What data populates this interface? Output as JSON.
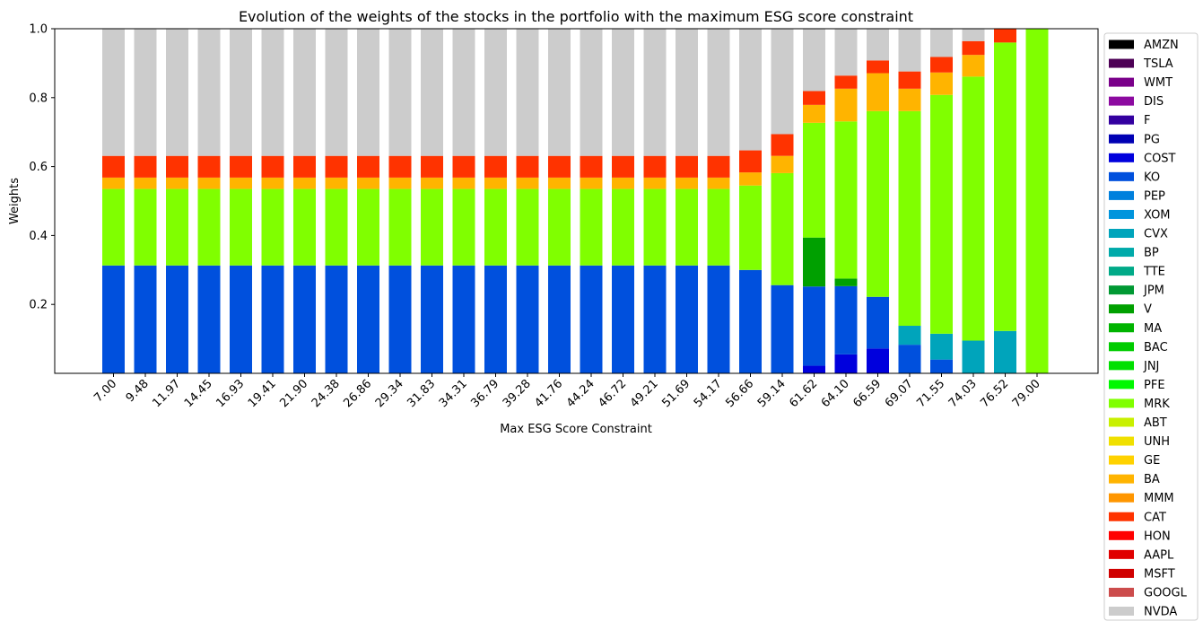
{
  "chart_data": {
    "type": "bar",
    "stacked": true,
    "title": "Evolution of the weights of the stocks in the portfolio with the maximum ESG score constraint",
    "xlabel": "Max ESG Score Constraint",
    "ylabel": "Weights",
    "ylim": [
      0,
      1.0
    ],
    "yticks": [
      0.2,
      0.4,
      0.6,
      0.8,
      1.0
    ],
    "legend_position": "outside-right",
    "grid": false,
    "categories": [
      "7.00",
      "9.48",
      "11.97",
      "14.45",
      "16.93",
      "19.41",
      "21.90",
      "24.38",
      "26.86",
      "29.34",
      "31.83",
      "34.31",
      "36.79",
      "39.28",
      "41.76",
      "44.24",
      "46.72",
      "49.21",
      "51.69",
      "54.17",
      "56.66",
      "59.14",
      "61.62",
      "64.10",
      "66.59",
      "69.07",
      "71.55",
      "74.03",
      "76.52",
      "79.00"
    ],
    "series": [
      {
        "name": "AMZN",
        "color": "#000000",
        "values": [
          0,
          0,
          0,
          0,
          0,
          0,
          0,
          0,
          0,
          0,
          0,
          0,
          0,
          0,
          0,
          0,
          0,
          0,
          0,
          0,
          0,
          0,
          0,
          0,
          0,
          0,
          0,
          0,
          0,
          0
        ]
      },
      {
        "name": "TSLA",
        "color": "#4d0055",
        "values": [
          0,
          0,
          0,
          0,
          0,
          0,
          0,
          0,
          0,
          0,
          0,
          0,
          0,
          0,
          0,
          0,
          0,
          0,
          0,
          0,
          0,
          0,
          0,
          0,
          0,
          0,
          0,
          0,
          0,
          0
        ]
      },
      {
        "name": "WMT",
        "color": "#7a008a",
        "values": [
          0,
          0,
          0,
          0,
          0,
          0,
          0,
          0,
          0,
          0,
          0,
          0,
          0,
          0,
          0,
          0,
          0,
          0,
          0,
          0,
          0,
          0,
          0,
          0,
          0,
          0,
          0,
          0,
          0,
          0
        ]
      },
      {
        "name": "DIS",
        "color": "#8c0aa0",
        "values": [
          0,
          0,
          0,
          0,
          0,
          0,
          0,
          0,
          0,
          0,
          0,
          0,
          0,
          0,
          0,
          0,
          0,
          0,
          0,
          0,
          0,
          0,
          0,
          0,
          0,
          0,
          0,
          0,
          0,
          0
        ]
      },
      {
        "name": "F",
        "color": "#3300a0",
        "values": [
          0,
          0,
          0,
          0,
          0,
          0,
          0,
          0,
          0,
          0,
          0,
          0,
          0,
          0,
          0,
          0,
          0,
          0,
          0,
          0,
          0,
          0,
          0,
          0,
          0,
          0,
          0,
          0,
          0,
          0
        ]
      },
      {
        "name": "PG",
        "color": "#0000b4",
        "values": [
          0,
          0,
          0,
          0,
          0,
          0,
          0,
          0,
          0,
          0,
          0,
          0,
          0,
          0,
          0,
          0,
          0,
          0,
          0,
          0,
          0,
          0,
          0,
          0,
          0,
          0,
          0,
          0,
          0,
          0
        ]
      },
      {
        "name": "COST",
        "color": "#0000dd",
        "values": [
          0,
          0,
          0,
          0,
          0,
          0,
          0,
          0,
          0,
          0,
          0,
          0,
          0,
          0,
          0,
          0,
          0,
          0,
          0,
          0,
          0,
          0,
          0.022,
          0.055,
          0.072,
          0,
          0,
          0,
          0,
          0
        ]
      },
      {
        "name": "KO",
        "color": "#0050dd",
        "values": [
          0.313,
          0.313,
          0.313,
          0.313,
          0.313,
          0.313,
          0.313,
          0.313,
          0.313,
          0.313,
          0.313,
          0.313,
          0.313,
          0.313,
          0.313,
          0.313,
          0.313,
          0.313,
          0.313,
          0.313,
          0.3,
          0.256,
          0.23,
          0.198,
          0.15,
          0.083,
          0.04,
          0,
          0,
          0
        ]
      },
      {
        "name": "PEP",
        "color": "#0080dd",
        "values": [
          0,
          0,
          0,
          0,
          0,
          0,
          0,
          0,
          0,
          0,
          0,
          0,
          0,
          0,
          0,
          0,
          0,
          0,
          0,
          0,
          0,
          0,
          0,
          0,
          0,
          0,
          0,
          0,
          0,
          0
        ]
      },
      {
        "name": "XOM",
        "color": "#0095dd",
        "values": [
          0,
          0,
          0,
          0,
          0,
          0,
          0,
          0,
          0,
          0,
          0,
          0,
          0,
          0,
          0,
          0,
          0,
          0,
          0,
          0,
          0,
          0,
          0,
          0,
          0,
          0,
          0,
          0,
          0,
          0
        ]
      },
      {
        "name": "CVX",
        "color": "#00a4bb",
        "values": [
          0,
          0,
          0,
          0,
          0,
          0,
          0,
          0,
          0,
          0,
          0,
          0,
          0,
          0,
          0,
          0,
          0,
          0,
          0,
          0,
          0,
          0,
          0,
          0,
          0,
          0.055,
          0.075,
          0.095,
          0.123,
          0
        ]
      },
      {
        "name": "BP",
        "color": "#00aaaa",
        "values": [
          0,
          0,
          0,
          0,
          0,
          0,
          0,
          0,
          0,
          0,
          0,
          0,
          0,
          0,
          0,
          0,
          0,
          0,
          0,
          0,
          0,
          0,
          0,
          0,
          0,
          0,
          0,
          0,
          0,
          0
        ]
      },
      {
        "name": "TTE",
        "color": "#00aa88",
        "values": [
          0,
          0,
          0,
          0,
          0,
          0,
          0,
          0,
          0,
          0,
          0,
          0,
          0,
          0,
          0,
          0,
          0,
          0,
          0,
          0,
          0,
          0,
          0,
          0,
          0,
          0,
          0,
          0,
          0,
          0
        ]
      },
      {
        "name": "JPM",
        "color": "#009933",
        "values": [
          0,
          0,
          0,
          0,
          0,
          0,
          0,
          0,
          0,
          0,
          0,
          0,
          0,
          0,
          0,
          0,
          0,
          0,
          0,
          0,
          0,
          0,
          0,
          0,
          0,
          0,
          0,
          0,
          0,
          0
        ]
      },
      {
        "name": "V",
        "color": "#00a000",
        "values": [
          0,
          0,
          0,
          0,
          0,
          0,
          0,
          0,
          0,
          0,
          0,
          0,
          0,
          0,
          0,
          0,
          0,
          0,
          0,
          0,
          0,
          0,
          0.142,
          0.022,
          0,
          0,
          0,
          0,
          0,
          0
        ]
      },
      {
        "name": "MA",
        "color": "#00b400",
        "values": [
          0,
          0,
          0,
          0,
          0,
          0,
          0,
          0,
          0,
          0,
          0,
          0,
          0,
          0,
          0,
          0,
          0,
          0,
          0,
          0,
          0,
          0,
          0,
          0,
          0,
          0,
          0,
          0,
          0,
          0
        ]
      },
      {
        "name": "BAC",
        "color": "#00cc00",
        "values": [
          0,
          0,
          0,
          0,
          0,
          0,
          0,
          0,
          0,
          0,
          0,
          0,
          0,
          0,
          0,
          0,
          0,
          0,
          0,
          0,
          0,
          0,
          0,
          0,
          0,
          0,
          0,
          0,
          0,
          0
        ]
      },
      {
        "name": "JNJ",
        "color": "#00e000",
        "values": [
          0,
          0,
          0,
          0,
          0,
          0,
          0,
          0,
          0,
          0,
          0,
          0,
          0,
          0,
          0,
          0,
          0,
          0,
          0,
          0,
          0,
          0,
          0,
          0,
          0,
          0,
          0,
          0,
          0,
          0
        ]
      },
      {
        "name": "PFE",
        "color": "#00f800",
        "values": [
          0,
          0,
          0,
          0,
          0,
          0,
          0,
          0,
          0,
          0,
          0,
          0,
          0,
          0,
          0,
          0,
          0,
          0,
          0,
          0,
          0,
          0,
          0,
          0,
          0,
          0,
          0,
          0,
          0,
          0
        ]
      },
      {
        "name": "MRK",
        "color": "#80ff00",
        "values": [
          0.222,
          0.222,
          0.222,
          0.222,
          0.222,
          0.222,
          0.222,
          0.222,
          0.222,
          0.222,
          0.222,
          0.222,
          0.222,
          0.222,
          0.222,
          0.222,
          0.222,
          0.222,
          0.222,
          0.222,
          0.245,
          0.325,
          0.333,
          0.456,
          0.539,
          0.623,
          0.693,
          0.766,
          0.837,
          1.0
        ]
      },
      {
        "name": "ABT",
        "color": "#c8f000",
        "values": [
          0,
          0,
          0,
          0,
          0,
          0,
          0,
          0,
          0,
          0,
          0,
          0,
          0,
          0,
          0,
          0,
          0,
          0,
          0,
          0,
          0,
          0,
          0,
          0,
          0,
          0,
          0,
          0,
          0,
          0
        ]
      },
      {
        "name": "UNH",
        "color": "#f0e000",
        "values": [
          0,
          0,
          0,
          0,
          0,
          0,
          0,
          0,
          0,
          0,
          0,
          0,
          0,
          0,
          0,
          0,
          0,
          0,
          0,
          0,
          0,
          0,
          0,
          0,
          0,
          0,
          0,
          0,
          0,
          0
        ]
      },
      {
        "name": "GE",
        "color": "#ffd200",
        "values": [
          0,
          0,
          0,
          0,
          0,
          0,
          0,
          0,
          0,
          0,
          0,
          0,
          0,
          0,
          0,
          0,
          0,
          0,
          0,
          0,
          0,
          0,
          0,
          0,
          0,
          0,
          0,
          0,
          0,
          0
        ]
      },
      {
        "name": "BA",
        "color": "#ffb400",
        "values": [
          0.033,
          0.033,
          0.033,
          0.033,
          0.033,
          0.033,
          0.033,
          0.033,
          0.033,
          0.033,
          0.033,
          0.033,
          0.033,
          0.033,
          0.033,
          0.033,
          0.033,
          0.033,
          0.033,
          0.033,
          0.038,
          0.05,
          0.052,
          0.095,
          0.11,
          0.065,
          0.065,
          0.063,
          0,
          0
        ]
      },
      {
        "name": "MMM",
        "color": "#ff9600",
        "values": [
          0,
          0,
          0,
          0,
          0,
          0,
          0,
          0,
          0,
          0,
          0,
          0,
          0,
          0,
          0,
          0,
          0,
          0,
          0,
          0,
          0,
          0,
          0,
          0,
          0,
          0,
          0,
          0,
          0,
          0
        ]
      },
      {
        "name": "CAT",
        "color": "#ff3300",
        "values": [
          0.063,
          0.063,
          0.063,
          0.063,
          0.063,
          0.063,
          0.063,
          0.063,
          0.063,
          0.063,
          0.063,
          0.063,
          0.063,
          0.063,
          0.063,
          0.063,
          0.063,
          0.063,
          0.063,
          0.063,
          0.064,
          0.063,
          0.04,
          0.038,
          0.037,
          0.05,
          0.045,
          0.04,
          0.04,
          0
        ]
      },
      {
        "name": "HON",
        "color": "#ff0000",
        "values": [
          0,
          0,
          0,
          0,
          0,
          0,
          0,
          0,
          0,
          0,
          0,
          0,
          0,
          0,
          0,
          0,
          0,
          0,
          0,
          0,
          0,
          0,
          0,
          0,
          0,
          0,
          0,
          0,
          0,
          0
        ]
      },
      {
        "name": "AAPL",
        "color": "#e00000",
        "values": [
          0,
          0,
          0,
          0,
          0,
          0,
          0,
          0,
          0,
          0,
          0,
          0,
          0,
          0,
          0,
          0,
          0,
          0,
          0,
          0,
          0,
          0,
          0,
          0,
          0,
          0,
          0,
          0,
          0,
          0
        ]
      },
      {
        "name": "MSFT",
        "color": "#d00000",
        "values": [
          0,
          0,
          0,
          0,
          0,
          0,
          0,
          0,
          0,
          0,
          0,
          0,
          0,
          0,
          0,
          0,
          0,
          0,
          0,
          0,
          0,
          0,
          0,
          0,
          0,
          0,
          0,
          0,
          0,
          0
        ]
      },
      {
        "name": "GOOGL",
        "color": "#cc4c4c",
        "values": [
          0,
          0,
          0,
          0,
          0,
          0,
          0,
          0,
          0,
          0,
          0,
          0,
          0,
          0,
          0,
          0,
          0,
          0,
          0,
          0,
          0,
          0,
          0,
          0,
          0,
          0,
          0,
          0,
          0,
          0
        ]
      },
      {
        "name": "NVDA",
        "color": "#cccccc",
        "values": [
          0.369,
          0.369,
          0.369,
          0.369,
          0.369,
          0.369,
          0.369,
          0.369,
          0.369,
          0.369,
          0.369,
          0.369,
          0.369,
          0.369,
          0.369,
          0.369,
          0.369,
          0.369,
          0.369,
          0.369,
          0.353,
          0.306,
          0.183,
          0.136,
          0.092,
          0.124,
          0.082,
          0.036,
          0,
          0
        ]
      }
    ]
  }
}
